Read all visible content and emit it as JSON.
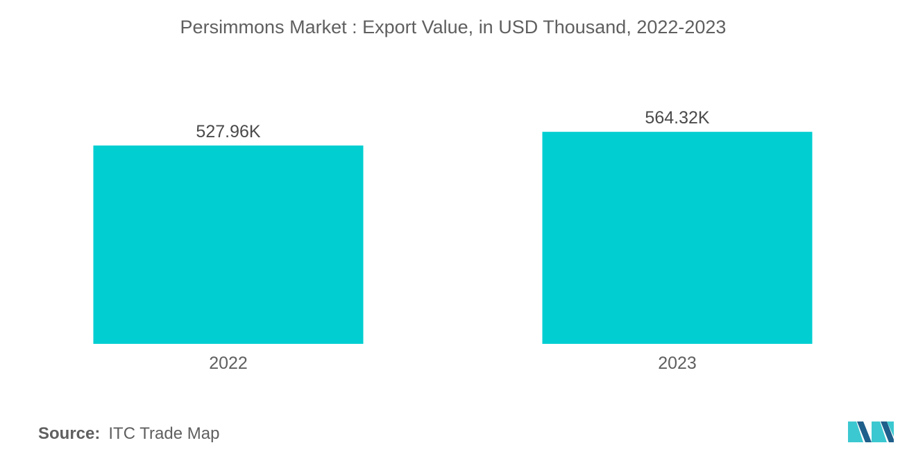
{
  "chart_data": {
    "type": "bar",
    "title": "Persimmons Market : Export Value, in USD Thousand, 2022-2023",
    "categories": [
      "2022",
      "2023"
    ],
    "values": [
      527.96,
      564.32
    ],
    "data_labels": [
      "527.96K",
      "564.32K"
    ],
    "xlabel": "",
    "ylabel": "",
    "ylim": [
      0,
      620
    ],
    "grid": false,
    "legend": "none",
    "bar_color": "#00ced1"
  },
  "source": {
    "label": "Source:",
    "text": "ITC Trade Map"
  },
  "colors": {
    "bar": "#00ced1",
    "text": "#5f5f5f",
    "logo_dark": "#1f5f8b",
    "logo_light": "#3cc8d0"
  },
  "logo": {
    "icon": "mordor-intelligence-logo-icon"
  }
}
